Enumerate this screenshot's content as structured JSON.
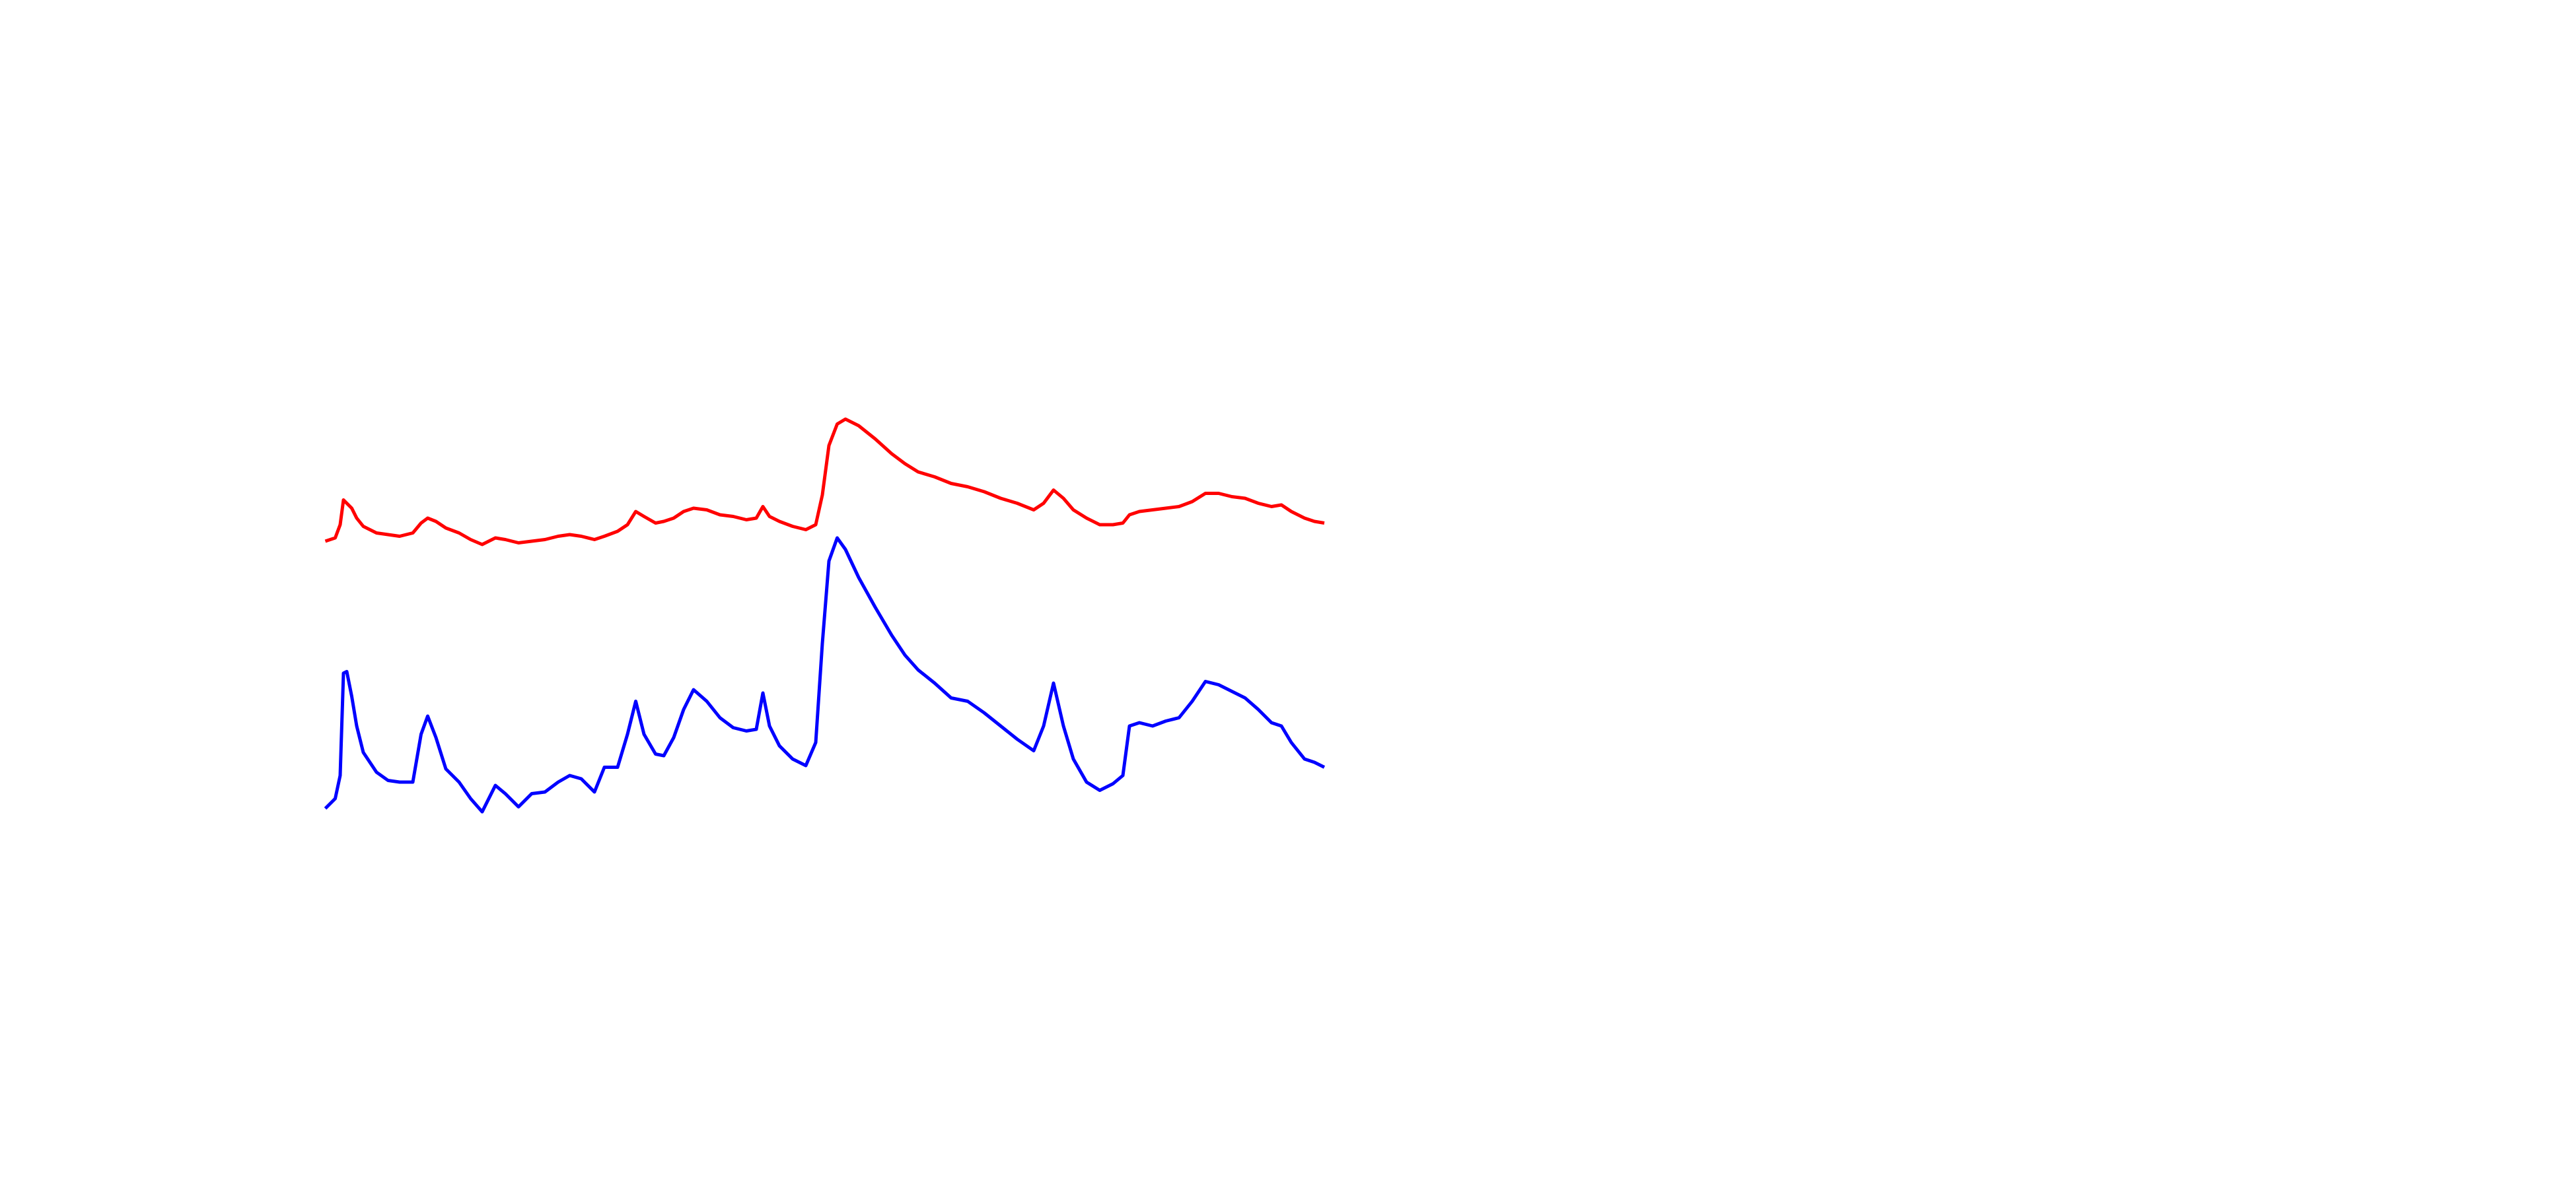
{
  "chart_data": {
    "type": "line",
    "x": [
      0,
      6,
      9,
      11,
      13,
      16,
      19,
      23,
      31,
      38,
      45,
      53,
      58,
      62,
      67,
      73,
      81,
      88,
      95,
      103,
      109,
      117,
      125,
      133,
      141,
      148,
      155,
      163,
      169,
      177,
      183,
      188,
      193,
      200,
      205,
      211,
      217,
      223,
      231,
      239,
      247,
      255,
      261,
      265,
      269,
      275,
      283,
      291,
      297,
      301,
      305,
      310,
      315,
      323,
      333,
      343,
      351,
      359,
      369,
      379,
      389,
      399,
      409,
      419,
      429,
      435,
      441,
      447,
      453,
      461,
      469,
      477,
      483,
      487,
      493,
      501,
      509,
      517,
      525,
      533,
      541,
      549,
      557,
      565,
      573,
      579,
      585,
      593,
      599,
      605
    ],
    "series": [
      {
        "color": "#ff0000",
        "values": [
          172,
          174,
          182,
          197,
          195,
          192,
          186,
          181,
          177,
          176,
          175,
          177,
          183,
          186,
          184,
          180,
          177,
          173,
          170,
          174,
          173,
          171,
          172,
          173,
          175,
          176,
          175,
          173,
          175,
          178,
          182,
          190,
          187,
          183,
          184,
          186,
          190,
          192,
          191,
          188,
          187,
          185,
          186,
          193,
          187,
          184,
          181,
          179,
          182,
          200,
          230,
          243,
          246,
          242,
          234,
          225,
          219,
          214,
          211,
          207,
          205,
          202,
          198,
          195,
          191,
          195,
          203,
          198,
          191,
          186,
          182,
          182,
          183,
          188,
          190,
          191,
          192,
          193,
          196,
          201,
          201,
          199,
          198,
          195,
          193,
          194,
          190,
          186,
          184,
          183
        ]
      },
      {
        "color": "#0000ff",
        "values": [
          10,
          16,
          30,
          92,
          93,
          78,
          60,
          44,
          32,
          27,
          26,
          26,
          55,
          66,
          53,
          34,
          26,
          16,
          8,
          24,
          19,
          11,
          19,
          20,
          26,
          30,
          28,
          20,
          35,
          35,
          55,
          75,
          55,
          43,
          42,
          53,
          70,
          82,
          75,
          65,
          59,
          57,
          58,
          80,
          60,
          48,
          40,
          36,
          50,
          110,
          160,
          174,
          167,
          150,
          132,
          115,
          103,
          94,
          86,
          77,
          75,
          68,
          60,
          52,
          45,
          60,
          86,
          60,
          40,
          26,
          21,
          25,
          30,
          60,
          62,
          60,
          63,
          65,
          75,
          87,
          85,
          81,
          77,
          70,
          62,
          60,
          50,
          40,
          38,
          35
        ]
      }
    ],
    "xlim": [
      0,
      605
    ],
    "ylim": [
      0,
      280
    ]
  }
}
